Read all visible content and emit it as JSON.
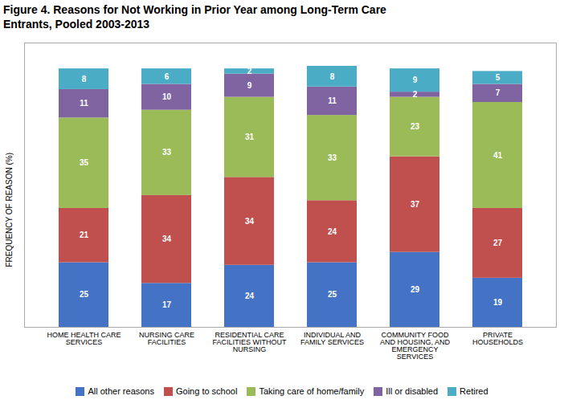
{
  "chart_data": {
    "type": "bar",
    "title": "Figure 4.  Reasons for Not Working in Prior Year among Long-Term Care\nEntrants, Pooled 2003-2013",
    "ylabel": "FREQUENCY OF REASON (%)",
    "categories": [
      "HOME HEALTH CARE\nSERVICES",
      "NURSING CARE\nFACILITIES",
      "RESIDENTIAL CARE\nFACILITIES WITHOUT\nNURSING",
      "INDIVIDUAL AND\nFAMILY SERVICES",
      "COMMUNITY FOOD\nAND HOUSING, AND\nEMERGENCY\nSERVICES",
      "PRIVATE\nHOUSEHOLDS"
    ],
    "series": [
      {
        "name": "All other reasons",
        "color": "#4472C4",
        "values": [
          25,
          17,
          24,
          25,
          29,
          19
        ]
      },
      {
        "name": "Going to school",
        "color": "#C0504D",
        "values": [
          21,
          34,
          34,
          24,
          37,
          27
        ]
      },
      {
        "name": "Taking care of home/family",
        "color": "#9BBB59",
        "values": [
          35,
          33,
          31,
          33,
          23,
          41
        ]
      },
      {
        "name": "Ill or disabled",
        "color": "#8064A2",
        "values": [
          11,
          10,
          9,
          11,
          2,
          7
        ]
      },
      {
        "name": "Retired",
        "color": "#4BACC6",
        "values": [
          8,
          6,
          2,
          8,
          9,
          5
        ]
      }
    ],
    "stacked": true,
    "ylim": [
      0,
      110
    ],
    "data_labels": true,
    "tick_labels": "x",
    "legend": "bottom",
    "grid": false
  }
}
